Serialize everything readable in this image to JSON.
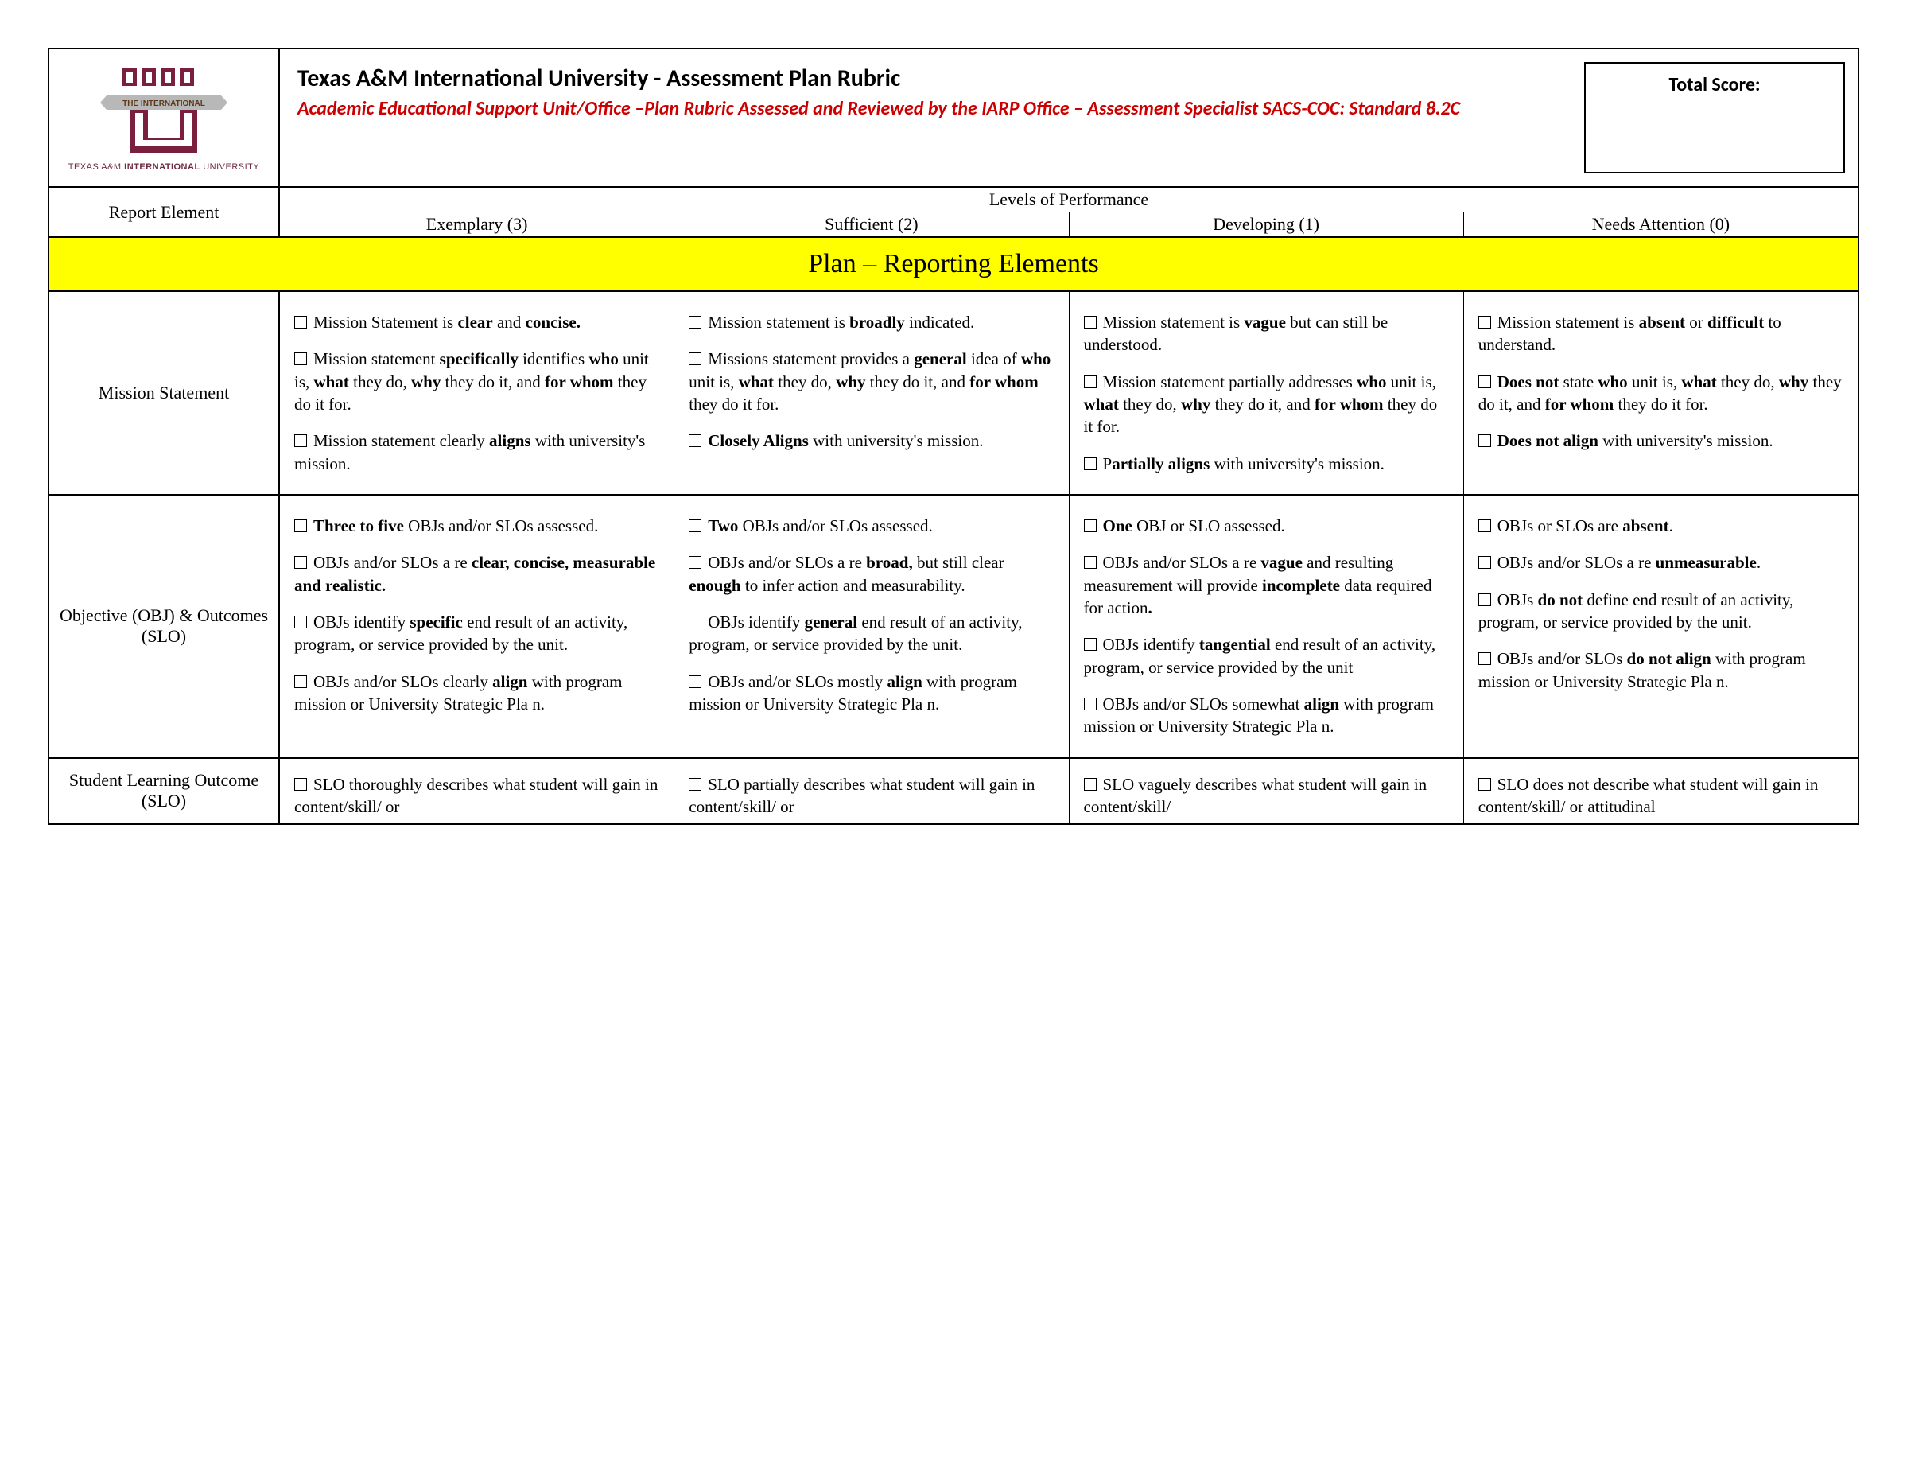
{
  "header": {
    "logo_caption_prefix": "TEXAS A&M ",
    "logo_caption_bold": "INTERNATIONAL",
    "logo_caption_suffix": " UNIVERSITY",
    "logo_banner": "THE INTERNATIONAL",
    "title_main": "Texas A&M International University - Assessment Plan Rubric",
    "title_sub": "Academic Educational Support Unit/Office –Plan Rubric Assessed and Reviewed by the IARP Office – Assessment Specialist SACS-COC: Standard 8.2C",
    "score_label": "Total Score:"
  },
  "columns": {
    "report_element": "Report Element",
    "levels_header": "Levels of Performance",
    "levels": [
      "Exemplary (3)",
      "Sufficient (2)",
      "Developing (1)",
      "Needs Attention (0)"
    ]
  },
  "section_banner": "Plan – Reporting Elements",
  "rows": [
    {
      "label": "Mission Statement",
      "cells": [
        [
          "☐ Mission Statement is <b>clear</b> and <b>concise.</b>",
          "☐ Mission statement <b>specifically</b> identifies <b>who</b> unit is, <b>what</b> they do, <b>why</b> they do it, and <b>for whom</b> they do it for.",
          "☐ Mission statement clearly <b>aligns</b> with university's mission."
        ],
        [
          "☐ Mission statement is <b>broadly</b> indicated.",
          "☐ Missions statement provides a <b>general</b> idea of <b>who</b> unit is, <b>what</b> they do, <b>why</b> they do it, and <b>for whom</b> they do it for.",
          "☐ <b>Closely Aligns</b> with university's mission."
        ],
        [
          "☐ Mission statement is <b>vague</b> but can still be understood.",
          "☐ Mission statement partially addresses <b>who</b> unit is, <b>what</b> they do, <b>why</b> they do it, and <b>for whom</b> they do it for.",
          "☐ P<b>artially aligns</b> with university's mission."
        ],
        [
          "☐ Mission statement is <b>absent</b> or <b>difficult</b> to understand.",
          "☐ <b>Does not</b> state <b>who</b> unit is, <b>what</b> they do, <b>why</b> they do it, and <b>for whom</b> they do it for.",
          "☐ <b>Does not align</b> with university's mission."
        ]
      ]
    },
    {
      "label": "Objective (OBJ) & Outcomes (SLO)",
      "cells": [
        [
          "☐ <b>Three to five</b> OBJs and/or SLOs assessed.",
          "☐ OBJs and/or SLOs a re <b>clear, concise, measurable and realistic.</b>",
          "☐ OBJs identify <b>specific</b> end result of an activity, program, or service provided by the unit.",
          "☐ OBJs and/or SLOs clearly <b>align</b> with program mission or University Strategic Pla n."
        ],
        [
          "☐ <b>Two</b> OBJs and/or SLOs assessed.",
          "☐ OBJs and/or SLOs a re <b>broad,</b> but still clear <b>enough</b> to infer action and measurability.",
          "☐ OBJs identify <b>general</b> end result of an activity, program, or service provided by the unit.",
          "☐ OBJs and/or SLOs mostly <b>align</b> with program mission or University Strategic Pla n."
        ],
        [
          "☐ <b>One</b> OBJ or SLO assessed.",
          "☐ OBJs and/or SLOs a re <b>vague</b> and resulting measurement will provide <b>incomplete</b> data required for action<b>.</b>",
          "☐ OBJs identify <b>tangential</b> end result of an activity, program, or service provided by the unit",
          "☐ OBJs and/or SLOs somewhat <b>align</b> with program mission or University Strategic Pla n."
        ],
        [
          "☐ OBJs or SLOs are <b>absent</b>.",
          "☐ OBJs and/or SLOs a re <b>unmeasurable</b>.",
          "☐ OBJs <b>do not</b> define end result of an activity, program, or service provided by the unit.",
          "☐ OBJs and/or SLOs <b>do not align</b> with program mission or University Strategic Pla n."
        ]
      ]
    },
    {
      "label": "Student Learning Outcome (SLO)",
      "cells": [
        [
          "☐ SLO thoroughly describes what student will gain in content/skill/ or"
        ],
        [
          "☐ SLO partially describes what student will gain in content/skill/ or"
        ],
        [
          "☐ SLO vaguely describes what student will gain in content/skill/"
        ],
        [
          "☐ SLO does not describe what student will gain in content/skill/ or attitudinal"
        ]
      ]
    }
  ],
  "colors": {
    "maroon": "#7a1f3d",
    "banner_gray": "#b8b8b8",
    "banner_text": "#5a3a1a",
    "subtitle_red": "#cc0000",
    "highlight_yellow": "#ffff00"
  }
}
